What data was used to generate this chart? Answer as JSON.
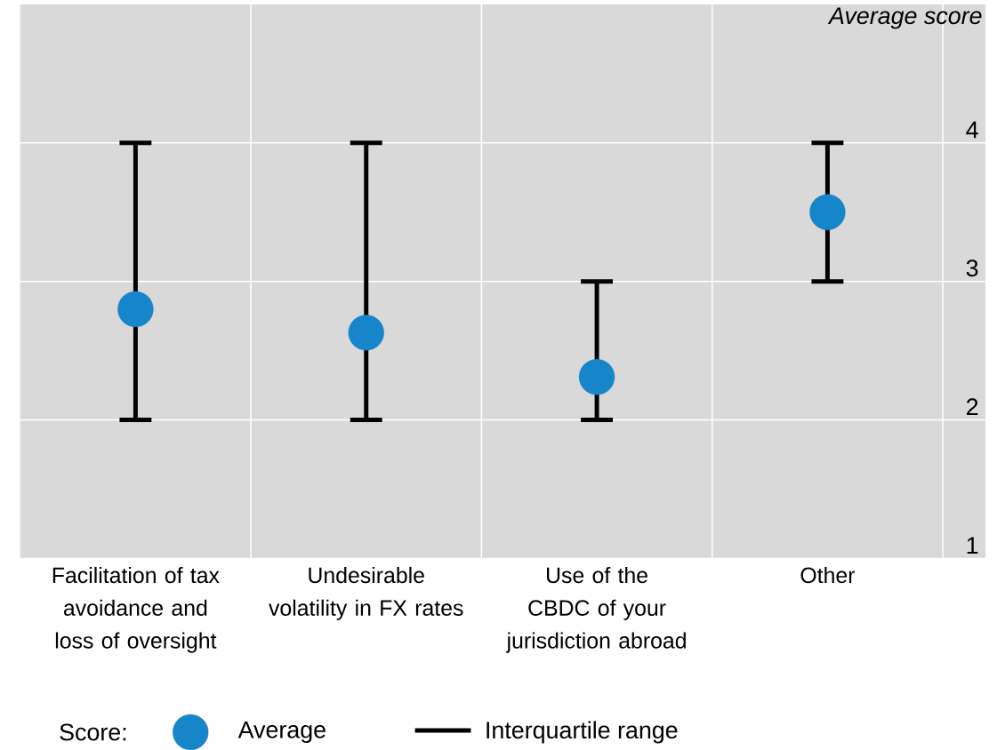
{
  "chart_data": {
    "type": "scatter",
    "ylabel": "Average score",
    "legend_title": "Score:",
    "categories": [
      "Facilitation of tax avoidance and loss of oversight",
      "Undesirable volatility in FX rates",
      "Use of the CBDC of your jurisdiction abroad",
      "Other"
    ],
    "series": [
      {
        "name": "Average",
        "color": "#1785c9",
        "values": [
          2.8,
          2.63,
          2.31,
          3.5
        ],
        "errors": [
          [
            2,
            4
          ],
          [
            2,
            4
          ],
          [
            2,
            3
          ],
          [
            3,
            4
          ]
        ]
      }
    ],
    "annotations": [
      "Interquartile range"
    ],
    "ylim": [
      1,
      5
    ],
    "yticks": [
      1,
      2,
      3,
      4
    ],
    "grid": true,
    "legend": "bottom",
    "marker": "circle"
  }
}
